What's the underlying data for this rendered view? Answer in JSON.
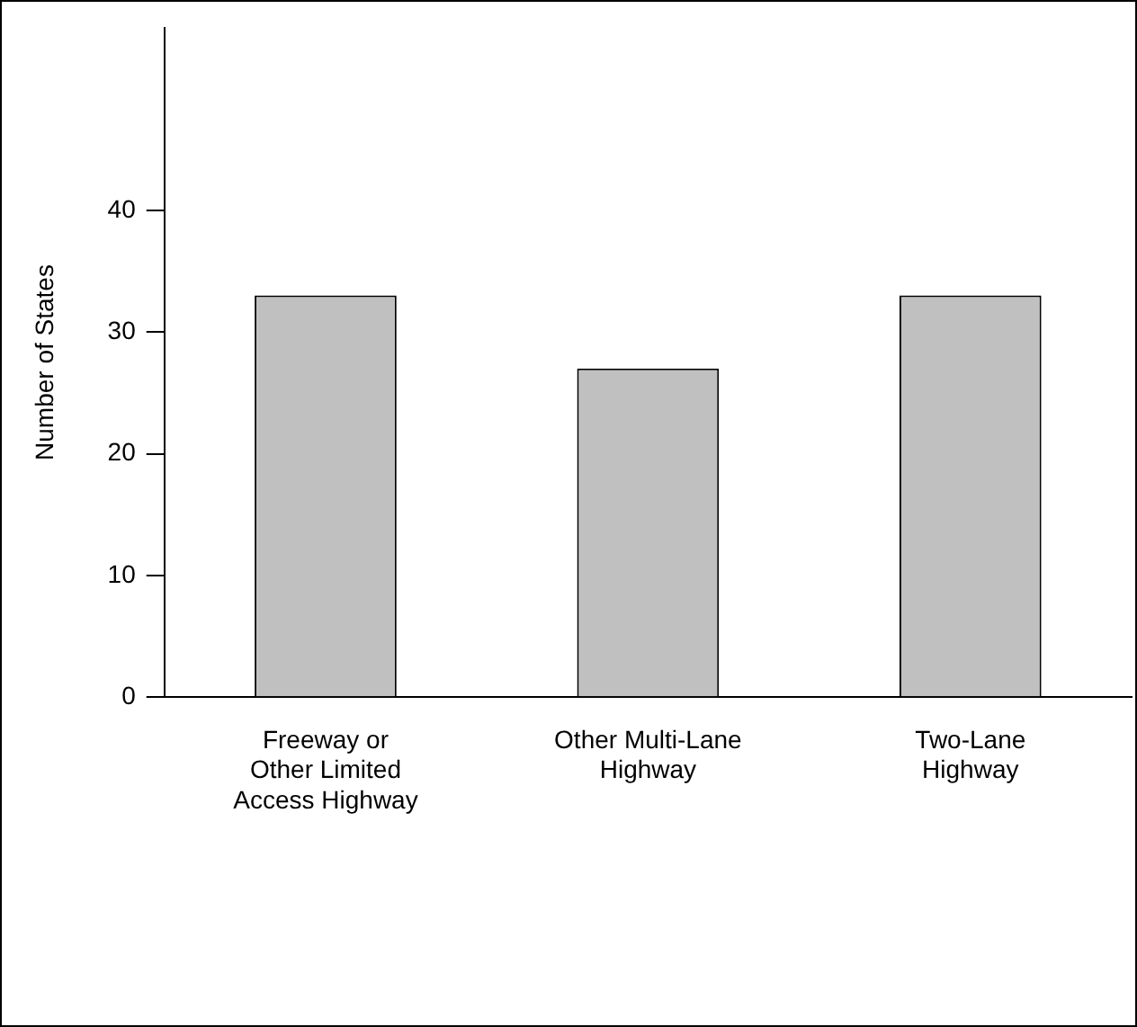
{
  "chart_data": {
    "type": "bar",
    "ylabel": "Number of States",
    "categories": [
      "Freeway or\nOther Limited\nAccess Highway",
      "Other Multi-Lane\nHighway",
      "Two-Lane\nHighway"
    ],
    "values": [
      33,
      27,
      33
    ],
    "color": "#c0c0c0",
    "ylim": [
      0,
      55
    ],
    "yticks": [
      0,
      10,
      20,
      30,
      40
    ],
    "grid": false,
    "legend": false
  }
}
